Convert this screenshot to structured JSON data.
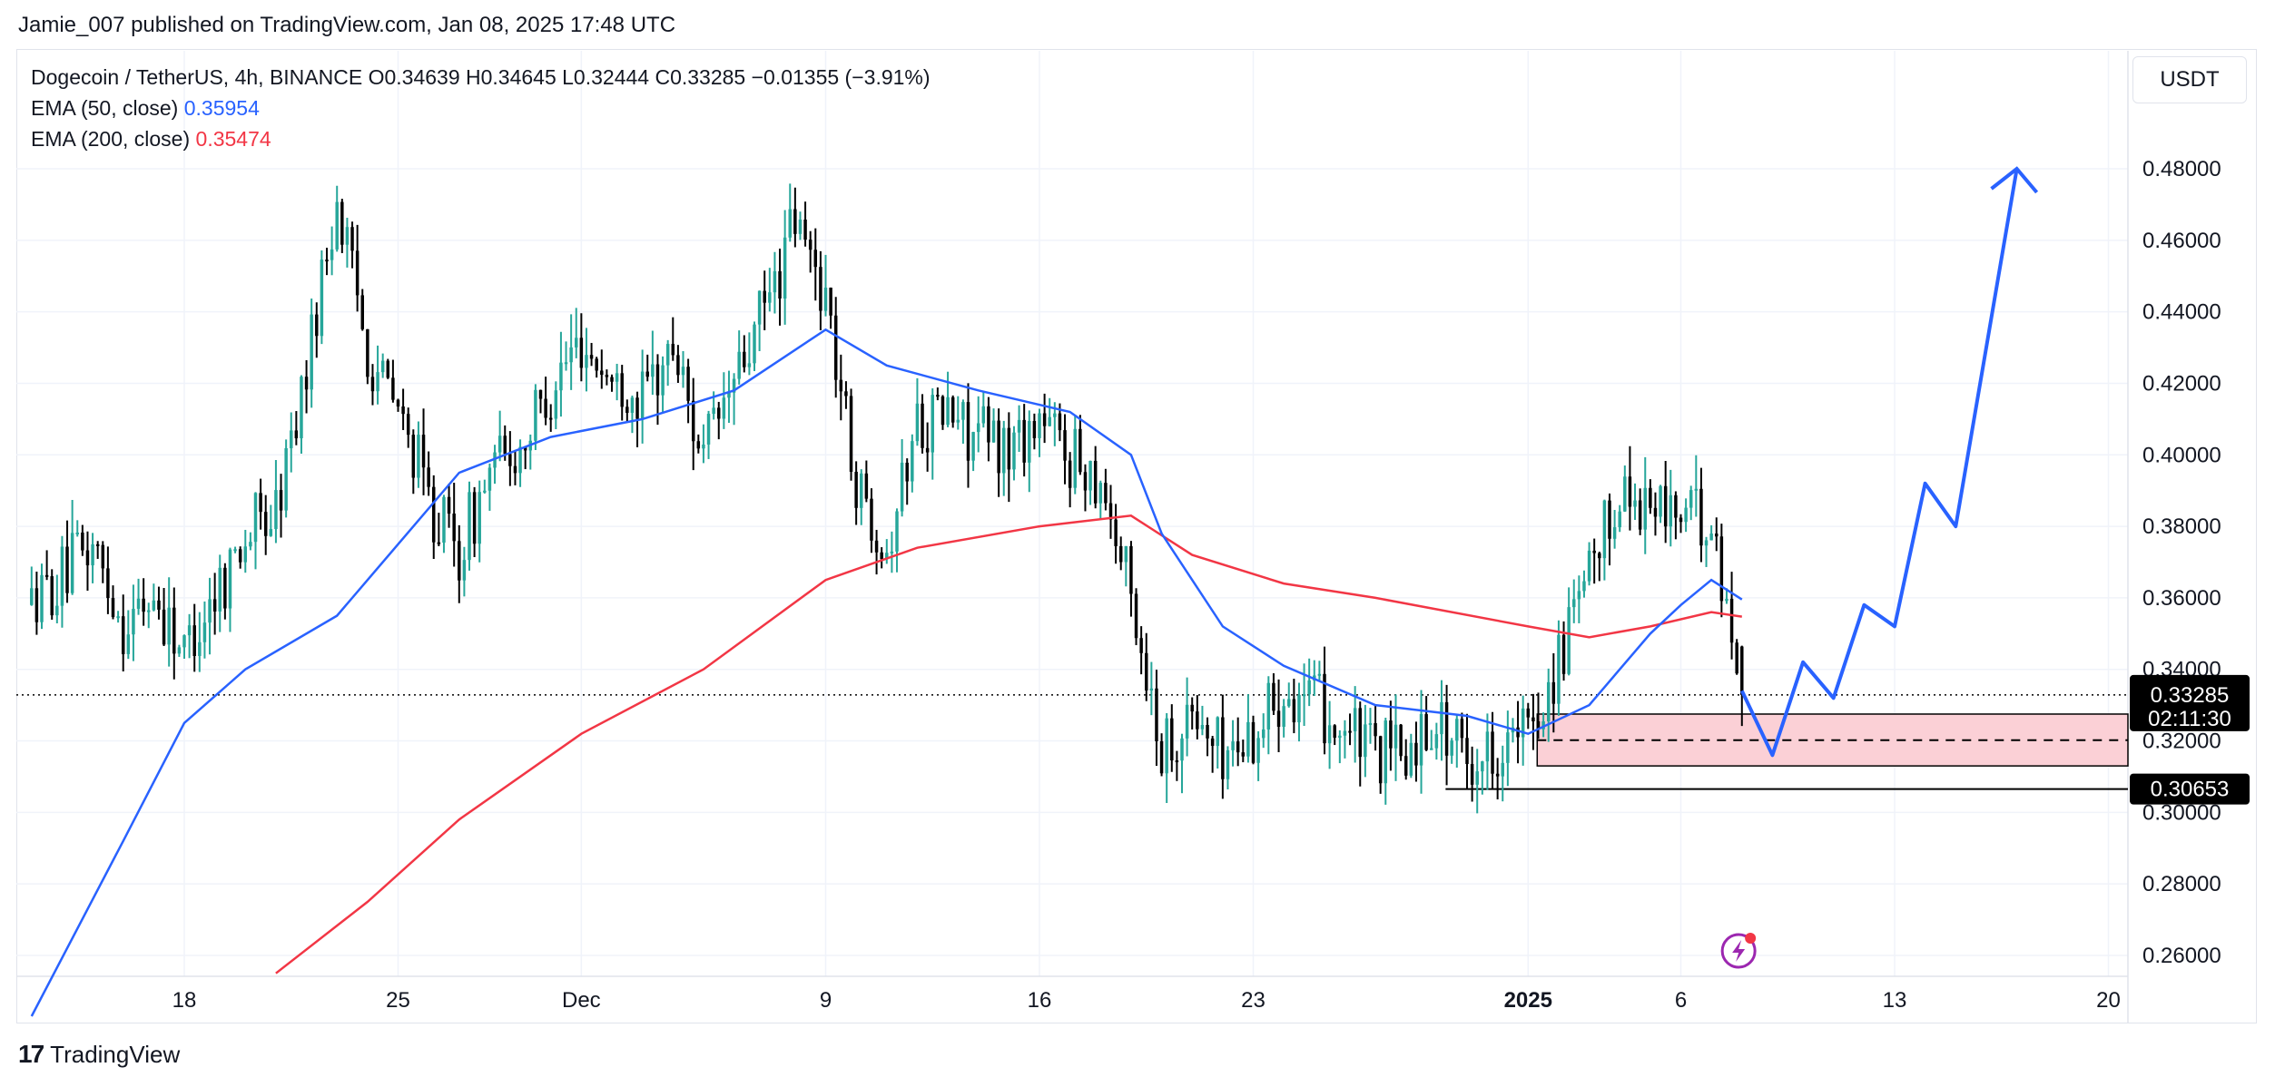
{
  "publisher_line": "Jamie_007 published on TradingView.com, Jan 08, 2025 17:48 UTC",
  "legend": {
    "symbol_line": "Dogecoin / TetherUS, 4h, BINANCE  O0.34639  H0.34645  L0.32444  C0.33285  −0.01355 (−3.91%)",
    "ema50_label": "EMA (50, close)",
    "ema50_value": "0.35954",
    "ema200_label": "EMA (200, close)",
    "ema200_value": "0.35474"
  },
  "currency_unit": "USDT",
  "footer": {
    "logo_mark": "17",
    "brand": "TradingView"
  },
  "colors": {
    "up": "#26a69a",
    "down": "#000000",
    "ema50": "#2962ff",
    "ema200": "#f23645",
    "zone_fill": "#fbd0d6",
    "projection": "#2962ff",
    "grid": "#f0f3fa"
  },
  "chart_data": {
    "type": "candlestick",
    "symbol": "Dogecoin / TetherUS",
    "interval": "4h",
    "exchange": "BINANCE",
    "x_ticks": [
      "18",
      "25",
      "Dec",
      "9",
      "16",
      "23",
      "2025",
      "6",
      "13",
      "20"
    ],
    "y_ticks": [
      "0.48000",
      "0.46000",
      "0.44000",
      "0.42000",
      "0.40000",
      "0.38000",
      "0.36000",
      "0.34000",
      "0.32000",
      "0.30000",
      "0.28000",
      "0.26000"
    ],
    "ylim": [
      0.255,
      0.5
    ],
    "last_price": "0.33285",
    "countdown": "02:11:30",
    "support_level": "0.30653",
    "support_value": 0.30653,
    "last_value": 0.33285,
    "demand_zone": {
      "top": 0.3275,
      "bottom": 0.313,
      "mid": 0.3202
    },
    "price_path": [
      [
        "Nov 13",
        0.358
      ],
      [
        "Nov 14",
        0.365
      ],
      [
        "Nov 15",
        0.375
      ],
      [
        "Nov 16",
        0.352
      ],
      [
        "Nov 17",
        0.36
      ],
      [
        "Nov 18",
        0.345
      ],
      [
        "Nov 19",
        0.362
      ],
      [
        "Nov 20",
        0.378
      ],
      [
        "Nov 21",
        0.384
      ],
      [
        "Nov 22",
        0.425
      ],
      [
        "Nov 23",
        0.472
      ],
      [
        "Nov 24",
        0.43
      ],
      [
        "Nov 25",
        0.412
      ],
      [
        "Nov 26",
        0.388
      ],
      [
        "Nov 27",
        0.372
      ],
      [
        "Nov 28",
        0.395
      ],
      [
        "Nov 29",
        0.402
      ],
      [
        "Nov 30",
        0.42
      ],
      [
        "Dec 1",
        0.432
      ],
      [
        "Dec 2",
        0.42
      ],
      [
        "Dec 3",
        0.416
      ],
      [
        "Dec 4",
        0.43
      ],
      [
        "Dec 5",
        0.4
      ],
      [
        "Dec 6",
        0.42
      ],
      [
        "Dec 7",
        0.44
      ],
      [
        "Dec 8",
        0.465
      ],
      [
        "Dec 9",
        0.445
      ],
      [
        "Dec 10",
        0.392
      ],
      [
        "Dec 11",
        0.375
      ],
      [
        "Dec 12",
        0.41
      ],
      [
        "Dec 13",
        0.412
      ],
      [
        "Dec 14",
        0.405
      ],
      [
        "Dec 15",
        0.402
      ],
      [
        "Dec 16",
        0.41
      ],
      [
        "Dec 17",
        0.4
      ],
      [
        "Dec 18",
        0.395
      ],
      [
        "Dec 19",
        0.36
      ],
      [
        "Dec 20",
        0.318
      ],
      [
        "Dec 21",
        0.327
      ],
      [
        "Dec 22",
        0.316
      ],
      [
        "Dec 23",
        0.322
      ],
      [
        "Dec 24",
        0.336
      ],
      [
        "Dec 25",
        0.33
      ],
      [
        "Dec 26",
        0.323
      ],
      [
        "Dec 27",
        0.316
      ],
      [
        "Dec 28",
        0.316
      ],
      [
        "Dec 29",
        0.327
      ],
      [
        "Dec 30",
        0.314
      ],
      [
        "Dec 31",
        0.318
      ],
      [
        "Jan 1",
        0.322
      ],
      [
        "Jan 2",
        0.342
      ],
      [
        "Jan 3",
        0.365
      ],
      [
        "Jan 4",
        0.39
      ],
      [
        "Jan 5",
        0.386
      ],
      [
        "Jan 6",
        0.384
      ],
      [
        "Jan 7",
        0.38
      ],
      [
        "Jan 8",
        0.33285
      ]
    ],
    "ema50_path": [
      [
        "Nov 13",
        0.243
      ],
      [
        "Nov 16",
        0.292
      ],
      [
        "Nov 18",
        0.325
      ],
      [
        "Nov 20",
        0.34
      ],
      [
        "Nov 23",
        0.355
      ],
      [
        "Nov 25",
        0.375
      ],
      [
        "Nov 27",
        0.395
      ],
      [
        "Nov 30",
        0.405
      ],
      [
        "Dec 3",
        0.41
      ],
      [
        "Dec 6",
        0.418
      ],
      [
        "Dec 9",
        0.435
      ],
      [
        "Dec 11",
        0.425
      ],
      [
        "Dec 14",
        0.418
      ],
      [
        "Dec 17",
        0.412
      ],
      [
        "Dec 19",
        0.4
      ],
      [
        "Dec 20",
        0.378
      ],
      [
        "Dec 22",
        0.352
      ],
      [
        "Dec 24",
        0.341
      ],
      [
        "Dec 27",
        0.33
      ],
      [
        "Dec 30",
        0.327
      ],
      [
        "Jan 1",
        0.322
      ],
      [
        "Jan 3",
        0.33
      ],
      [
        "Jan 4",
        0.34
      ],
      [
        "Jan 5",
        0.35
      ],
      [
        "Jan 6",
        0.358
      ],
      [
        "Jan 7",
        0.365
      ],
      [
        "Jan 8",
        0.35954
      ]
    ],
    "ema200_path": [
      [
        "Nov 21",
        0.255
      ],
      [
        "Nov 24",
        0.275
      ],
      [
        "Nov 27",
        0.298
      ],
      [
        "Dec 1",
        0.322
      ],
      [
        "Dec 5",
        0.34
      ],
      [
        "Dec 9",
        0.365
      ],
      [
        "Dec 12",
        0.374
      ],
      [
        "Dec 16",
        0.38
      ],
      [
        "Dec 19",
        0.383
      ],
      [
        "Dec 21",
        0.372
      ],
      [
        "Dec 24",
        0.364
      ],
      [
        "Dec 27",
        0.36
      ],
      [
        "Jan 1",
        0.352
      ],
      [
        "Jan 3",
        0.349
      ],
      [
        "Jan 5",
        0.352
      ],
      [
        "Jan 7",
        0.356
      ],
      [
        "Jan 8",
        0.35474
      ]
    ],
    "projection_path": [
      [
        "Jan 8",
        0.334
      ],
      [
        "Jan 9",
        0.316
      ],
      [
        "Jan 10",
        0.342
      ],
      [
        "Jan 11",
        0.332
      ],
      [
        "Jan 12",
        0.358
      ],
      [
        "Jan 13",
        0.352
      ],
      [
        "Jan 14",
        0.392
      ],
      [
        "Jan 15",
        0.38
      ],
      [
        "Jan 17",
        0.48
      ]
    ]
  }
}
